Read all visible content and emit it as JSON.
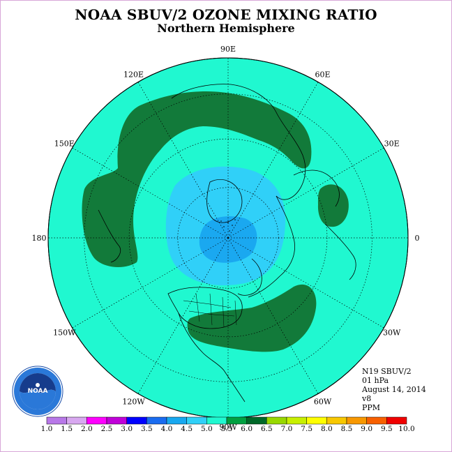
{
  "title": "NOAA SBUV/2 OZONE MIXING RATIO",
  "subtitle": "Northern Hemisphere",
  "projection": "north-polar-stereographic",
  "longitude_labels": [
    {
      "text": "90E",
      "lon": 90
    },
    {
      "text": "60E",
      "lon": 60
    },
    {
      "text": "30E",
      "lon": 30
    },
    {
      "text": "0",
      "lon": 0
    },
    {
      "text": "30W",
      "lon": -30
    },
    {
      "text": "60W",
      "lon": -60
    },
    {
      "text": "90W",
      "lon": -90
    },
    {
      "text": "120W",
      "lon": -120
    },
    {
      "text": "150W",
      "lon": -150
    },
    {
      "text": "180",
      "lon": 180
    },
    {
      "text": "150E",
      "lon": 150
    },
    {
      "text": "120E",
      "lon": 120
    }
  ],
  "info": {
    "instrument": "N19 SBUV/2",
    "level": "01 hPa",
    "date": "August 14, 2014",
    "version": "v8",
    "units": "PPM"
  },
  "logo": {
    "text": "NOAA",
    "ring_text": "NATIONAL OCEANIC AND ATMOSPHERIC ADMINISTRATION · U.S. DEPARTMENT OF COMMERCE"
  },
  "colorbar": {
    "labels": [
      "1.0",
      "1.5",
      "2.0",
      "2.5",
      "3.0",
      "3.5",
      "4.0",
      "4.5",
      "5.0",
      "5.5",
      "6.0",
      "6.5",
      "7.0",
      "7.5",
      "8.0",
      "8.5",
      "9.0",
      "9.5",
      "10.0"
    ],
    "colors": [
      "#b878e8",
      "#d8a8f0",
      "#ff00ff",
      "#c000d8",
      "#0000ff",
      "#1a6cf0",
      "#18a8f0",
      "#30d0f8",
      "#20f8d0",
      "#00a040",
      "#006828",
      "#98d800",
      "#c8f000",
      "#ffff00",
      "#f8c800",
      "#f89800",
      "#f86000",
      "#f00000",
      "#985030"
    ]
  },
  "regions": {
    "background_level": "4.5-5.0",
    "background_color": "#20f8d0",
    "pole_levels": [
      "4.0-4.5",
      "3.5-4.0"
    ],
    "high_bands_level": "5.0-5.5",
    "high_bands_color": "#127a3a"
  }
}
